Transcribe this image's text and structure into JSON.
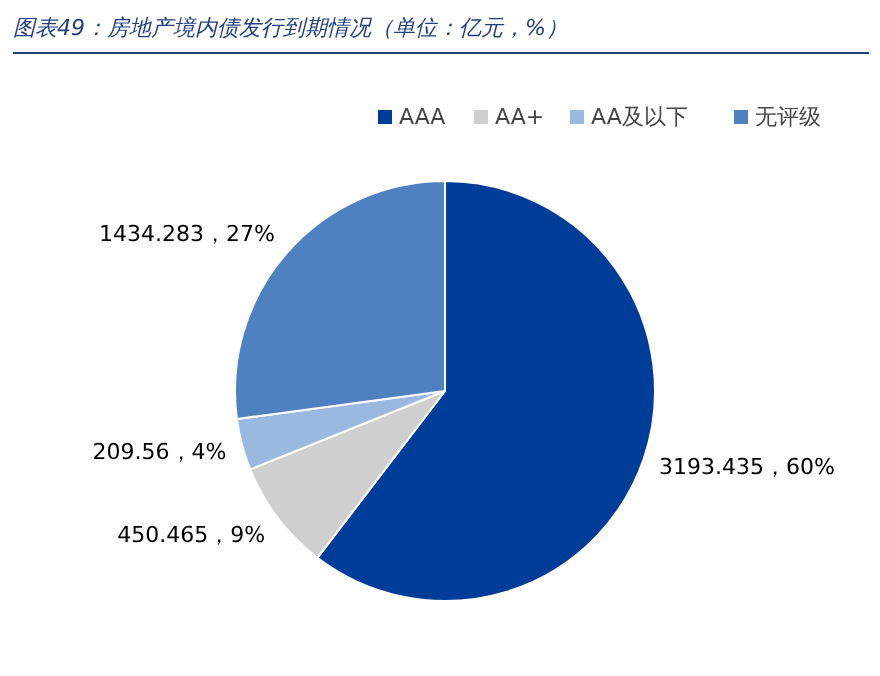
{
  "chart_data": {
    "type": "pie",
    "title": "图表49：房地产境内债发行到期情况（单位：亿元，%）",
    "categories": [
      "AAA",
      "AA+",
      "AA及以下",
      "无评级"
    ],
    "values": [
      3193.435,
      450.465,
      209.56,
      1434.283
    ],
    "colors": [
      "#003d99",
      "#cfcfcf",
      "#9bb8e0",
      "#4f81c0"
    ],
    "value_labels": [
      "3193.435，60%",
      "450.465，9%",
      "209.56，4%",
      "1434.283，27%"
    ],
    "legend": "top right"
  }
}
